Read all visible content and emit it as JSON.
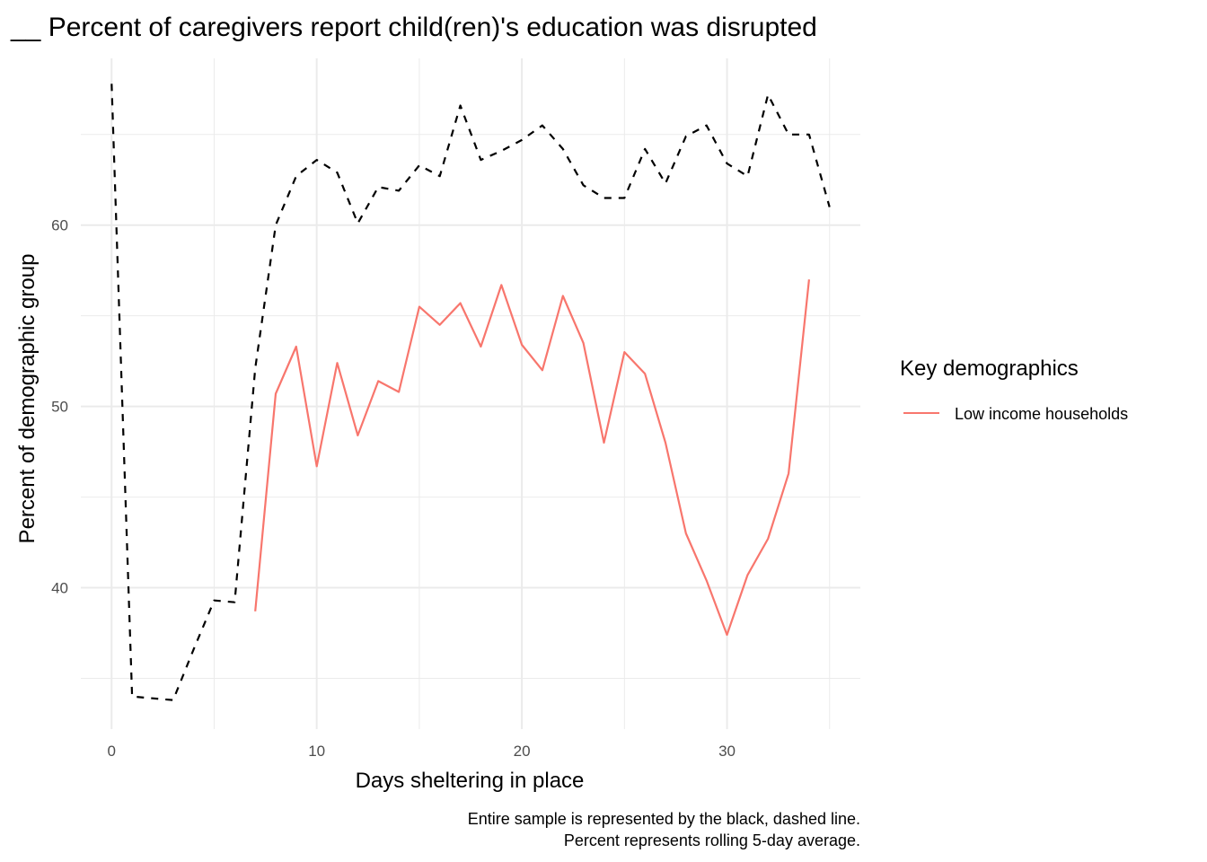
{
  "chart_data": {
    "type": "line",
    "title": "__ Percent of caregivers report child(ren)'s education was disrupted",
    "xlabel": "Days sheltering in place",
    "ylabel": "Percent of demographic group",
    "xlim": [
      -1.5,
      36.5
    ],
    "ylim": [
      32.2,
      69.2
    ],
    "x_ticks": [
      0,
      10,
      20,
      30
    ],
    "x_tick_labels": [
      "0",
      "10",
      "20",
      "30"
    ],
    "y_ticks": [
      40,
      50,
      60
    ],
    "y_tick_labels": [
      "40",
      "50",
      "60"
    ],
    "x_minor_ticks": [
      5,
      15,
      25,
      35
    ],
    "y_minor_ticks": [
      35,
      45,
      55,
      65
    ],
    "grid": true,
    "legend": {
      "title": "Key demographics",
      "position": "right",
      "entries": [
        {
          "label": "Low income households",
          "color": "#f8766d"
        }
      ]
    },
    "caption": [
      "Entire sample is represented by the black, dashed line.",
      "Percent represents rolling 5-day average."
    ],
    "series": [
      {
        "role": "entire sample",
        "color": "#000000",
        "style": "dashed",
        "x": [
          0,
          1,
          2,
          3,
          4,
          5,
          6,
          7,
          8,
          9,
          10,
          11,
          12,
          13,
          14,
          15,
          16,
          17,
          18,
          19,
          20,
          21,
          22,
          23,
          24,
          25,
          26,
          27,
          28,
          29,
          30,
          31,
          32,
          33,
          34,
          35
        ],
        "values": [
          67.8,
          34.0,
          33.9,
          33.8,
          36.6,
          39.3,
          39.2,
          52.1,
          60.0,
          62.7,
          63.6,
          62.9,
          60.1,
          62.1,
          61.9,
          63.3,
          62.7,
          66.6,
          63.6,
          64.1,
          64.7,
          65.5,
          64.2,
          62.2,
          61.5,
          61.5,
          64.2,
          62.3,
          64.9,
          65.5,
          63.4,
          62.7,
          67.2,
          65.0,
          65.0,
          61.0
        ]
      },
      {
        "name": "Low income households",
        "color": "#f8766d",
        "style": "solid",
        "x": [
          7,
          8,
          9,
          10,
          11,
          12,
          13,
          14,
          15,
          16,
          17,
          18,
          19,
          20,
          21,
          22,
          23,
          24,
          25,
          26,
          27,
          28,
          29,
          30,
          31,
          32,
          33,
          34
        ],
        "values": [
          38.7,
          50.7,
          53.3,
          46.7,
          52.4,
          48.4,
          51.4,
          50.8,
          55.5,
          54.5,
          55.7,
          53.3,
          56.7,
          53.4,
          52.0,
          56.1,
          53.5,
          48.0,
          53.0,
          51.8,
          48.0,
          43.0,
          40.4,
          37.4,
          40.7,
          42.7,
          46.3,
          57.0
        ]
      }
    ]
  }
}
